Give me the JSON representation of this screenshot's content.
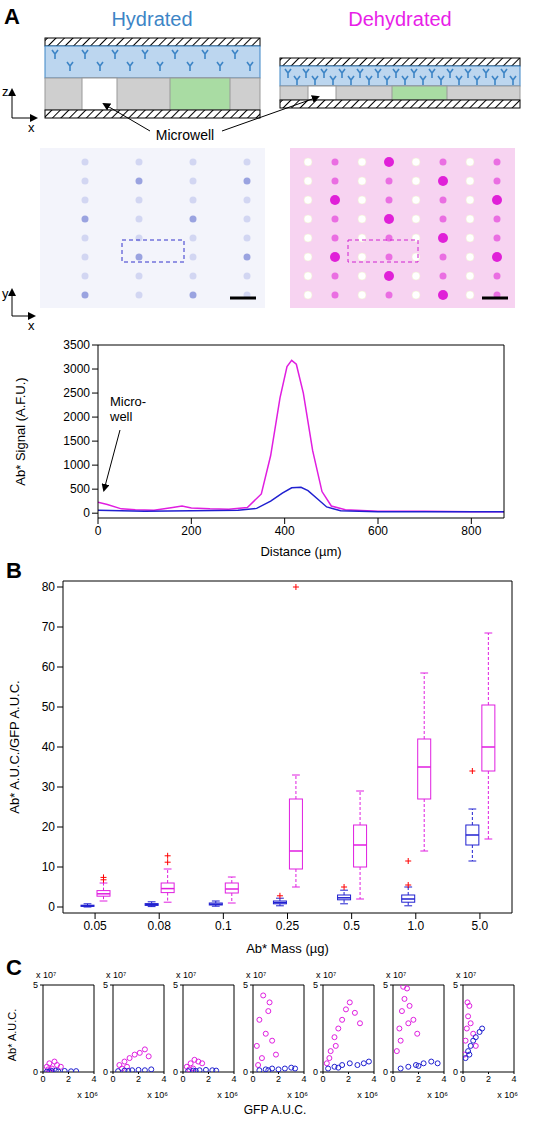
{
  "diagram": {
    "panel_labels": [
      "A",
      "B",
      "C"
    ],
    "conditions": [
      {
        "label": "Hydrated",
        "color": "#3d85c6"
      },
      {
        "label": "Dehydrated",
        "color": "#e81ee8"
      }
    ],
    "schematic_label": "Microwell",
    "schematic_axes": [
      "z",
      "x"
    ],
    "image_axes": [
      "y",
      "x"
    ]
  },
  "chart_data": [
    {
      "type": "line",
      "x_label": "Distance (µm)",
      "y_label": "Ab* Signal (A.F.U.)",
      "annotations": [
        "Micro-well"
      ],
      "xlim": [
        0,
        870
      ],
      "ylim": [
        -100,
        3500
      ],
      "xticks": [
        0,
        200,
        400,
        600,
        800
      ],
      "yticks": [
        0,
        500,
        1000,
        1500,
        2000,
        2500,
        3000,
        3500
      ],
      "series": [
        {
          "color": "#e01ee0",
          "x": [
            0,
            20,
            50,
            80,
            120,
            160,
            180,
            200,
            240,
            280,
            320,
            350,
            370,
            390,
            405,
            415,
            425,
            440,
            460,
            480,
            500,
            530,
            600,
            700,
            800,
            870
          ],
          "values": [
            230,
            180,
            90,
            70,
            60,
            120,
            150,
            110,
            90,
            80,
            120,
            400,
            1200,
            2400,
            3050,
            3180,
            3100,
            2500,
            1300,
            450,
            150,
            70,
            40,
            40,
            30,
            30
          ]
        },
        {
          "color": "#2020d0",
          "x": [
            0,
            50,
            100,
            200,
            300,
            340,
            370,
            395,
            415,
            435,
            450,
            470,
            490,
            520,
            600,
            700,
            870
          ],
          "values": [
            60,
            50,
            40,
            50,
            60,
            100,
            250,
            420,
            530,
            540,
            470,
            300,
            130,
            50,
            30,
            30,
            30
          ]
        }
      ]
    },
    {
      "type": "box",
      "x_label": "Ab* Mass (µg)",
      "y_label": "Ab* A.U.C./GFP A.U.C.",
      "categories": [
        "0.05",
        "0.08",
        "0.1",
        "0.25",
        "0.5",
        "1.0",
        "5.0"
      ],
      "ylim": [
        -1.5,
        81.5
      ],
      "yticks": [
        0,
        10,
        20,
        30,
        40,
        50,
        60,
        70,
        80
      ],
      "series": [
        {
          "color": "#2020d0",
          "line_style": "dashed",
          "boxes": [
            {
              "whisker_low": 0,
              "q1": 0.15,
              "median": 0.3,
              "q3": 0.45,
              "whisker_high": 0.8,
              "outliers": []
            },
            {
              "whisker_low": 0.1,
              "q1": 0.4,
              "median": 0.6,
              "q3": 0.85,
              "whisker_high": 1.3,
              "outliers": []
            },
            {
              "whisker_low": 0.2,
              "q1": 0.5,
              "median": 0.7,
              "q3": 1.0,
              "whisker_high": 1.5,
              "outliers": []
            },
            {
              "whisker_low": 0.3,
              "q1": 0.8,
              "median": 1.1,
              "q3": 1.5,
              "whisker_high": 2.2,
              "outliers": [
                2.8
              ]
            },
            {
              "whisker_low": 0.8,
              "q1": 1.8,
              "median": 2.3,
              "q3": 3.0,
              "whisker_high": 4.2,
              "outliers": [
                5.0
              ]
            },
            {
              "whisker_low": 0.3,
              "q1": 1.2,
              "median": 2.0,
              "q3": 3.0,
              "whisker_high": 5.0,
              "outliers": [
                5.5,
                11.5
              ]
            },
            {
              "whisker_low": 11.5,
              "q1": 15.5,
              "median": 18,
              "q3": 20.5,
              "whisker_high": 24.5,
              "outliers": [
                34.0
              ]
            }
          ]
        },
        {
          "color": "#e01ee0",
          "line_style": "dashed",
          "boxes": [
            {
              "whisker_low": 1.5,
              "q1": 2.7,
              "median": 3.3,
              "q3": 4.1,
              "whisker_high": 6.0,
              "outliers": [
                6.8,
                7.4
              ]
            },
            {
              "whisker_low": 1.2,
              "q1": 3.6,
              "median": 4.6,
              "q3": 6.0,
              "whisker_high": 9.5,
              "outliers": [
                11.2,
                12.8
              ]
            },
            {
              "whisker_low": 1.0,
              "q1": 3.5,
              "median": 4.5,
              "q3": 6.0,
              "whisker_high": 7.5,
              "outliers": []
            },
            {
              "whisker_low": 5.0,
              "q1": 9.5,
              "median": 14.0,
              "q3": 27.0,
              "whisker_high": 33.0,
              "outliers": [
                80.0
              ]
            },
            {
              "whisker_low": 2.0,
              "q1": 10.0,
              "median": 15.5,
              "q3": 20.5,
              "whisker_high": 29.0,
              "outliers": []
            },
            {
              "whisker_low": 14.0,
              "q1": 27.0,
              "median": 35.0,
              "q3": 42.0,
              "whisker_high": 58.5,
              "outliers": []
            },
            {
              "whisker_low": 17.0,
              "q1": 34.0,
              "median": 40.0,
              "q3": 50.5,
              "whisker_high": 68.5,
              "outliers": []
            }
          ]
        }
      ]
    },
    {
      "type": "scatter",
      "x_label": "GFP A.U.C.",
      "y_label": "Ab* A.U.C.",
      "x_scale_label": "x 10⁶",
      "y_scale_label": "x 10⁷",
      "xlim": [
        0,
        4
      ],
      "ylim": [
        0,
        5
      ],
      "xticks": [
        0,
        2,
        4
      ],
      "yticks": [
        0,
        5
      ],
      "panels": [
        {
          "series": [
            {
              "color": "#e01ee0",
              "marker": "circle",
              "x": [
                0.3,
                0.5,
                0.7,
                0.9,
                1.1,
                1.4,
                0.6,
                0.4
              ],
              "y": [
                0.3,
                0.5,
                0.2,
                0.6,
                0.4,
                0.3,
                0.1,
                0.15
              ]
            },
            {
              "color": "#2020d0",
              "marker": "circle",
              "x": [
                0.3,
                0.7,
                1.2,
                1.7,
                2.2,
                2.6,
                1.0,
                0.5
              ],
              "y": [
                0.02,
                0.05,
                0.03,
                0.06,
                0.04,
                0.05,
                0.08,
                0.03
              ]
            }
          ]
        },
        {
          "series": [
            {
              "color": "#e01ee0",
              "marker": "circle",
              "x": [
                0.5,
                0.9,
                1.3,
                1.7,
                2.1,
                2.5,
                2.8,
                1.1,
                0.7
              ],
              "y": [
                0.4,
                0.6,
                0.8,
                1.0,
                1.1,
                1.3,
                0.9,
                0.3,
                0.2
              ]
            },
            {
              "color": "#2020d0",
              "marker": "circle",
              "x": [
                0.4,
                0.9,
                1.5,
                2.0,
                2.5,
                3.0,
                1.2
              ],
              "y": [
                0.05,
                0.08,
                0.1,
                0.12,
                0.1,
                0.15,
                0.06
              ]
            }
          ]
        },
        {
          "series": [
            {
              "color": "#e01ee0",
              "marker": "circle",
              "x": [
                0.3,
                0.6,
                0.9,
                1.2,
                1.5,
                0.8,
                0.5
              ],
              "y": [
                0.3,
                0.5,
                0.7,
                0.6,
                0.5,
                0.2,
                0.15
              ]
            },
            {
              "color": "#2020d0",
              "marker": "circle",
              "x": [
                0.4,
                0.8,
                1.3,
                1.8,
                2.3,
                2.6,
                1.0
              ],
              "y": [
                0.05,
                0.08,
                0.1,
                0.12,
                0.1,
                0.08,
                0.06
              ]
            }
          ]
        },
        {
          "series": [
            {
              "color": "#e01ee0",
              "marker": "circle",
              "x": [
                0.3,
                0.5,
                0.8,
                1.0,
                1.2,
                1.5,
                1.8,
                0.7,
                0.4,
                1.3
              ],
              "y": [
                1.5,
                3.0,
                4.4,
                2.2,
                3.5,
                1.8,
                1.0,
                0.8,
                0.4,
                4.0
              ]
            },
            {
              "color": "#2020d0",
              "marker": "circle",
              "x": [
                0.5,
                1.0,
                1.5,
                2.0,
                2.5,
                3.0,
                3.3,
                1.2
              ],
              "y": [
                0.1,
                0.15,
                0.2,
                0.15,
                0.2,
                0.25,
                0.2,
                0.1
              ]
            }
          ]
        },
        {
          "series": [
            {
              "color": "#e01ee0",
              "marker": "circle",
              "x": [
                0.3,
                0.6,
                0.9,
                1.2,
                1.5,
                1.8,
                2.1,
                2.5,
                2.9,
                1.0,
                0.5
              ],
              "y": [
                0.5,
                1.2,
                2.0,
                2.5,
                3.0,
                3.6,
                4.0,
                3.4,
                2.8,
                1.5,
                0.8
              ]
            },
            {
              "color": "#2020d0",
              "marker": "circle",
              "x": [
                0.4,
                0.9,
                1.5,
                2.1,
                2.7,
                3.2,
                3.6,
                1.2
              ],
              "y": [
                0.2,
                0.3,
                0.4,
                0.5,
                0.4,
                0.5,
                0.6,
                0.25
              ]
            }
          ]
        },
        {
          "series": [
            {
              "color": "#e01ee0",
              "marker": "circle",
              "x": [
                0.3,
                0.5,
                0.7,
                0.9,
                1.1,
                1.3,
                1.6,
                1.9,
                0.8,
                0.6,
                1.2
              ],
              "y": [
                1.2,
                2.5,
                3.5,
                4.2,
                4.8,
                3.8,
                3.0,
                2.2,
                4.9,
                1.8,
                2.8
              ]
            },
            {
              "color": "#2020d0",
              "marker": "circle",
              "x": [
                0.6,
                1.2,
                1.8,
                2.4,
                3.0,
                3.5,
                2.0
              ],
              "y": [
                0.2,
                0.3,
                0.4,
                0.5,
                0.6,
                0.5,
                0.35
              ]
            }
          ]
        },
        {
          "series": [
            {
              "color": "#e01ee0",
              "marker": "circle",
              "x": [
                0.1,
                0.2,
                0.3,
                0.4,
                0.5,
                0.6,
                0.8,
                1.0,
                0.35
              ],
              "y": [
                1.0,
                1.8,
                2.5,
                3.2,
                3.8,
                2.8,
                2.2,
                1.5,
                4.0
              ]
            },
            {
              "color": "#2020d0",
              "marker": "circle",
              "x": [
                0.2,
                0.4,
                0.6,
                0.8,
                1.0,
                1.3,
                1.5,
                0.5
              ],
              "y": [
                0.8,
                1.2,
                1.5,
                1.8,
                2.0,
                2.3,
                2.5,
                1.0
              ]
            }
          ]
        }
      ]
    }
  ]
}
